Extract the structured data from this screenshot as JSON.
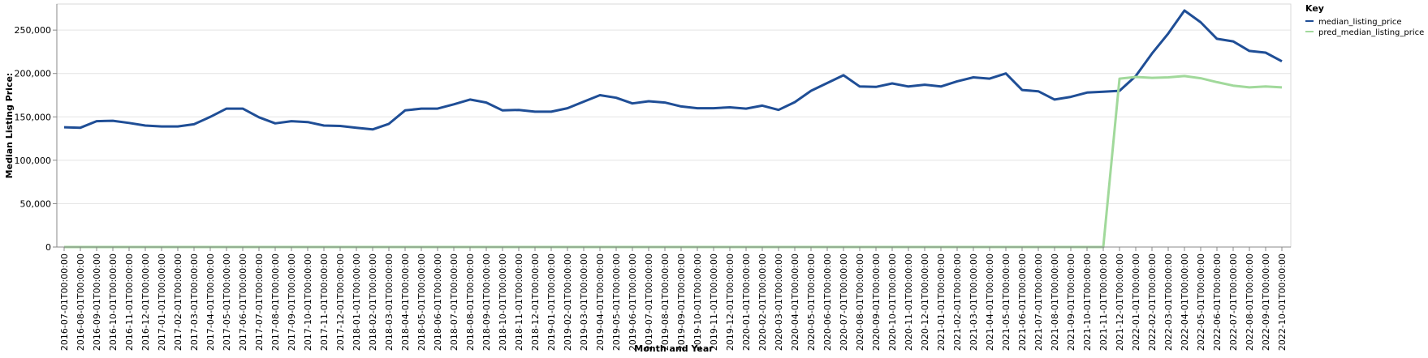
{
  "chart_data": {
    "type": "line",
    "xlabel": "Month and Year",
    "ylabel": "Median Listing Price:",
    "ylim": [
      0,
      280000
    ],
    "yticks": [
      0,
      50000,
      100000,
      150000,
      200000,
      250000
    ],
    "ytick_labels": [
      "0",
      "50,000",
      "100,000",
      "150,000",
      "200,000",
      "250,000"
    ],
    "grid": true,
    "legend_title": "Key",
    "legend_position": "top-right",
    "x": [
      "2016-07-01T00:00:00",
      "2016-08-01T00:00:00",
      "2016-09-01T00:00:00",
      "2016-10-01T00:00:00",
      "2016-11-01T00:00:00",
      "2016-12-01T00:00:00",
      "2017-01-01T00:00:00",
      "2017-02-01T00:00:00",
      "2017-03-01T00:00:00",
      "2017-04-01T00:00:00",
      "2017-05-01T00:00:00",
      "2017-06-01T00:00:00",
      "2017-07-01T00:00:00",
      "2017-08-01T00:00:00",
      "2017-09-01T00:00:00",
      "2017-10-01T00:00:00",
      "2017-11-01T00:00:00",
      "2017-12-01T00:00:00",
      "2018-01-01T00:00:00",
      "2018-02-01T00:00:00",
      "2018-03-01T00:00:00",
      "2018-04-01T00:00:00",
      "2018-05-01T00:00:00",
      "2018-06-01T00:00:00",
      "2018-07-01T00:00:00",
      "2018-08-01T00:00:00",
      "2018-09-01T00:00:00",
      "2018-10-01T00:00:00",
      "2018-11-01T00:00:00",
      "2018-12-01T00:00:00",
      "2019-01-01T00:00:00",
      "2019-02-01T00:00:00",
      "2019-03-01T00:00:00",
      "2019-04-01T00:00:00",
      "2019-05-01T00:00:00",
      "2019-06-01T00:00:00",
      "2019-07-01T00:00:00",
      "2019-08-01T00:00:00",
      "2019-09-01T00:00:00",
      "2019-10-01T00:00:00",
      "2019-11-01T00:00:00",
      "2019-12-01T00:00:00",
      "2020-01-01T00:00:00",
      "2020-02-01T00:00:00",
      "2020-03-01T00:00:00",
      "2020-04-01T00:00:00",
      "2020-05-01T00:00:00",
      "2020-06-01T00:00:00",
      "2020-07-01T00:00:00",
      "2020-08-01T00:00:00",
      "2020-09-01T00:00:00",
      "2020-10-01T00:00:00",
      "2020-11-01T00:00:00",
      "2020-12-01T00:00:00",
      "2021-01-01T00:00:00",
      "2021-02-01T00:00:00",
      "2021-03-01T00:00:00",
      "2021-04-01T00:00:00",
      "2021-05-01T00:00:00",
      "2021-06-01T00:00:00",
      "2021-07-01T00:00:00",
      "2021-08-01T00:00:00",
      "2021-09-01T00:00:00",
      "2021-10-01T00:00:00",
      "2021-11-01T00:00:00",
      "2021-12-01T00:00:00",
      "2022-01-01T00:00:00",
      "2022-02-01T00:00:00",
      "2022-03-01T00:00:00",
      "2022-04-01T00:00:00",
      "2022-05-01T00:00:00",
      "2022-06-01T00:00:00",
      "2022-07-01T00:00:00",
      "2022-08-01T00:00:00",
      "2022-09-01T00:00:00",
      "2022-10-01T00:00:00"
    ],
    "series": [
      {
        "name": "median_listing_price",
        "color": "#1f4e96",
        "values": [
          138000,
          137500,
          145000,
          145500,
          143000,
          140000,
          139000,
          139000,
          141500,
          150000,
          159500,
          159500,
          149500,
          142500,
          145000,
          144000,
          140000,
          139500,
          137500,
          135500,
          142000,
          157500,
          159500,
          159500,
          164500,
          170000,
          166500,
          157500,
          158000,
          156000,
          156000,
          160000,
          167500,
          175000,
          172000,
          165500,
          168000,
          166500,
          162000,
          160000,
          160000,
          161000,
          159500,
          163000,
          158000,
          167000,
          180000,
          189000,
          198000,
          185000,
          184500,
          188500,
          185000,
          187000,
          185000,
          191000,
          195500,
          194000,
          200000,
          181000,
          179500,
          170000,
          173000,
          178000,
          179000,
          180000,
          197000,
          223000,
          246000,
          272500,
          259000,
          240000,
          237000,
          226000,
          224000,
          214000
        ]
      },
      {
        "name": "pred_median_listing_price",
        "color": "#a1d99b",
        "values": [
          0,
          0,
          0,
          0,
          0,
          0,
          0,
          0,
          0,
          0,
          0,
          0,
          0,
          0,
          0,
          0,
          0,
          0,
          0,
          0,
          0,
          0,
          0,
          0,
          0,
          0,
          0,
          0,
          0,
          0,
          0,
          0,
          0,
          0,
          0,
          0,
          0,
          0,
          0,
          0,
          0,
          0,
          0,
          0,
          0,
          0,
          0,
          0,
          0,
          0,
          0,
          0,
          0,
          0,
          0,
          0,
          0,
          0,
          0,
          0,
          0,
          0,
          0,
          0,
          0,
          194000,
          196000,
          195000,
          195500,
          197000,
          194500,
          190000,
          186000,
          184000,
          185000,
          184000
        ]
      }
    ]
  }
}
